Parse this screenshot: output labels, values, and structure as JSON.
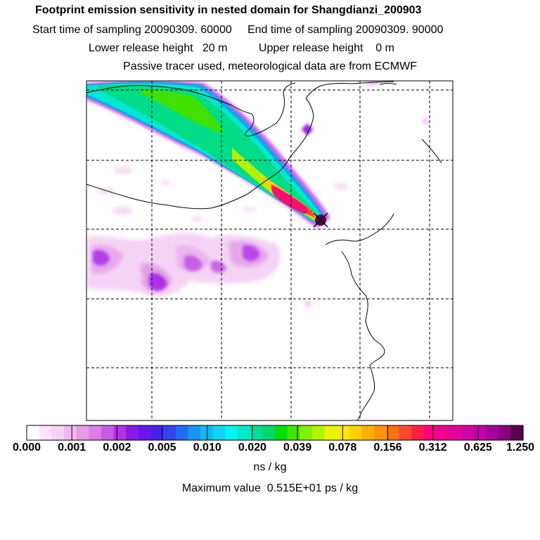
{
  "header": {
    "title": "Footprint emission sensitivity in nested domain for Shangdianzi_200903",
    "sampling_line": "Start time of sampling 20090309. 60000     End time of sampling 20090309. 90000",
    "release_line": "Lower release height   20 m          Upper release height    0 m",
    "tracer_line": "Passive tracer used, meteorological data are from ECMWF"
  },
  "legend": {
    "tick_labels": [
      "0.000",
      "0.001",
      "0.002",
      "0.005",
      "0.010",
      "0.020",
      "0.039",
      "0.078",
      "0.156",
      "0.312",
      "0.625",
      "1.250"
    ],
    "colors": [
      "#ffffff",
      "#fbe6fb",
      "#f7d0f7",
      "#f0b8f0",
      "#e89ae8",
      "#dc7ee4",
      "#c85ae6",
      "#b42ee8",
      "#8a18e8",
      "#6a14f0",
      "#4a20f2",
      "#3044f0",
      "#1e6cf0",
      "#1496f2",
      "#10b8f4",
      "#10d6f6",
      "#00f4f2",
      "#00e8c8",
      "#00e09a",
      "#00d86a",
      "#00e000",
      "#40e800",
      "#80f000",
      "#b4f400",
      "#e8f400",
      "#ffe800",
      "#ffd000",
      "#ffb000",
      "#ff9400",
      "#ff7010",
      "#ff4830",
      "#ff2040",
      "#ff0080",
      "#f0008c",
      "#e4009c",
      "#d000a8",
      "#c000a8",
      "#a8009c",
      "#880080",
      "#5a0050"
    ],
    "unit": "ns / kg",
    "max_value": "Maximum value  0.515E+01 ps / kg"
  },
  "map": {
    "receptor": "Shangdianzi",
    "marker_icon": "x-cross-icon"
  }
}
